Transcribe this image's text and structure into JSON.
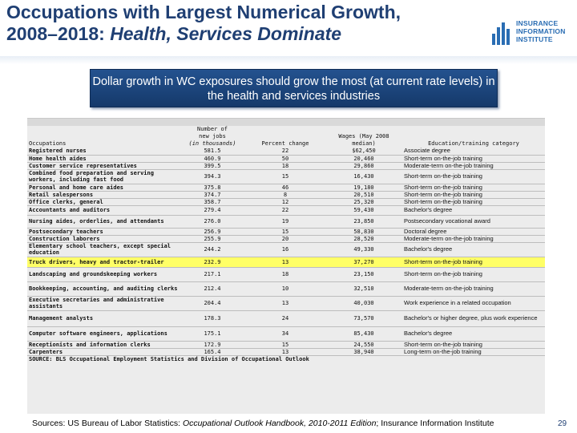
{
  "title": {
    "line1": "Occupations with Largest Numerical Growth,",
    "line2_plain": "2008–2018: ",
    "line2_italic": "Health, Services Dominate"
  },
  "logo": {
    "line1": "INSURANCE",
    "line2": "INFORMATION",
    "line3": "INSTITUTE",
    "color": "#2a6db3"
  },
  "banner": {
    "text": "Dollar growth in WC exposures should grow the most (at current rate levels) in the health and services industries"
  },
  "table": {
    "headers": {
      "occupation": "Occupations",
      "jobs": "Number of new jobs",
      "jobs_units": "(in thousands)",
      "percent": "Percent change",
      "wages": "Wages (May 2008 median)",
      "education": "Education/training category"
    },
    "rows": [
      {
        "occupation": "Registered nurses",
        "jobs": "581.5",
        "percent": "22",
        "wages": "$62,450",
        "education": "Associate degree",
        "highlight": false
      },
      {
        "occupation": "Home health aides",
        "jobs": "460.9",
        "percent": "50",
        "wages": "20,460",
        "education": "Short-term on-the-job training",
        "highlight": false
      },
      {
        "occupation": "Customer service representatives",
        "jobs": "399.5",
        "percent": "18",
        "wages": "29,860",
        "education": "Moderate-term on-the-job training",
        "highlight": false
      },
      {
        "occupation": "Combined food preparation and serving workers, including fast food",
        "jobs": "394.3",
        "percent": "15",
        "wages": "16,430",
        "education": "Short-term on-the-job training",
        "highlight": false
      },
      {
        "occupation": "Personal and home care aides",
        "jobs": "375.8",
        "percent": "46",
        "wages": "19,180",
        "education": "Short-term on-the-job training",
        "highlight": false
      },
      {
        "occupation": "Retail salespersons",
        "jobs": "374.7",
        "percent": "8",
        "wages": "20,510",
        "education": "Short-term on-the-job training",
        "highlight": false
      },
      {
        "occupation": "Office clerks, general",
        "jobs": "358.7",
        "percent": "12",
        "wages": "25,320",
        "education": "Short-term on-the-job training",
        "highlight": false
      },
      {
        "occupation": "Accountants and auditors",
        "jobs": "279.4",
        "percent": "22",
        "wages": "59,430",
        "education": "Bachelor's degree",
        "highlight": false
      },
      {
        "occupation": "Nursing aides, orderlies, and attendants",
        "jobs": "276.0",
        "percent": "19",
        "wages": "23,850",
        "education": "Postsecondary vocational award",
        "highlight": false
      },
      {
        "occupation": "Postsecondary teachers",
        "jobs": "256.9",
        "percent": "15",
        "wages": "58,830",
        "education": "Doctoral degree",
        "highlight": false
      },
      {
        "occupation": "Construction laborers",
        "jobs": "255.9",
        "percent": "20",
        "wages": "28,520",
        "education": "Moderate-term on-the-job training",
        "highlight": false
      },
      {
        "occupation": "Elementary school teachers, except special education",
        "jobs": "244.2",
        "percent": "16",
        "wages": "49,330",
        "education": "Bachelor's degree",
        "highlight": false
      },
      {
        "occupation": "Truck drivers, heavy and tractor-trailer",
        "jobs": "232.9",
        "percent": "13",
        "wages": "37,270",
        "education": "Short-term on-the-job training",
        "highlight": true
      },
      {
        "occupation": "Landscaping and groundskeeping workers",
        "jobs": "217.1",
        "percent": "18",
        "wages": "23,150",
        "education": "Short-term on-the-job training",
        "highlight": false
      },
      {
        "occupation": "Bookkeeping, accounting, and auditing clerks",
        "jobs": "212.4",
        "percent": "10",
        "wages": "32,510",
        "education": "Moderate-term on-the-job training",
        "highlight": false
      },
      {
        "occupation": "Executive secretaries and administrative assistants",
        "jobs": "204.4",
        "percent": "13",
        "wages": "40,030",
        "education": "Work experience in a related occupation",
        "highlight": false
      },
      {
        "occupation": "Management analysts",
        "jobs": "178.3",
        "percent": "24",
        "wages": "73,570",
        "education": "Bachelor's or higher degree, plus work experience",
        "highlight": false
      },
      {
        "occupation": "Computer software engineers, applications",
        "jobs": "175.1",
        "percent": "34",
        "wages": "85,430",
        "education": "Bachelor's degree",
        "highlight": false
      },
      {
        "occupation": "Receptionists and information clerks",
        "jobs": "172.9",
        "percent": "15",
        "wages": "24,550",
        "education": "Short-term on-the-job training",
        "highlight": false
      },
      {
        "occupation": "Carpenters",
        "jobs": "165.4",
        "percent": "13",
        "wages": "38,940",
        "education": "Long-term on-the-job training",
        "highlight": false
      }
    ],
    "source_note": "SOURCE: BLS Occupational Employment Statistics and Division of Occupational Outlook",
    "highlight_color": "#ffff66"
  },
  "footer": {
    "prefix": "Sources: US Bureau of Labor Statistics: ",
    "italic": "Occupational Outlook Handbook, 2010-2011 Edition",
    "suffix": "; Insurance Information Institute"
  },
  "page_number": "29",
  "colors": {
    "title": "#1f3f73",
    "banner": "#1d4680"
  }
}
